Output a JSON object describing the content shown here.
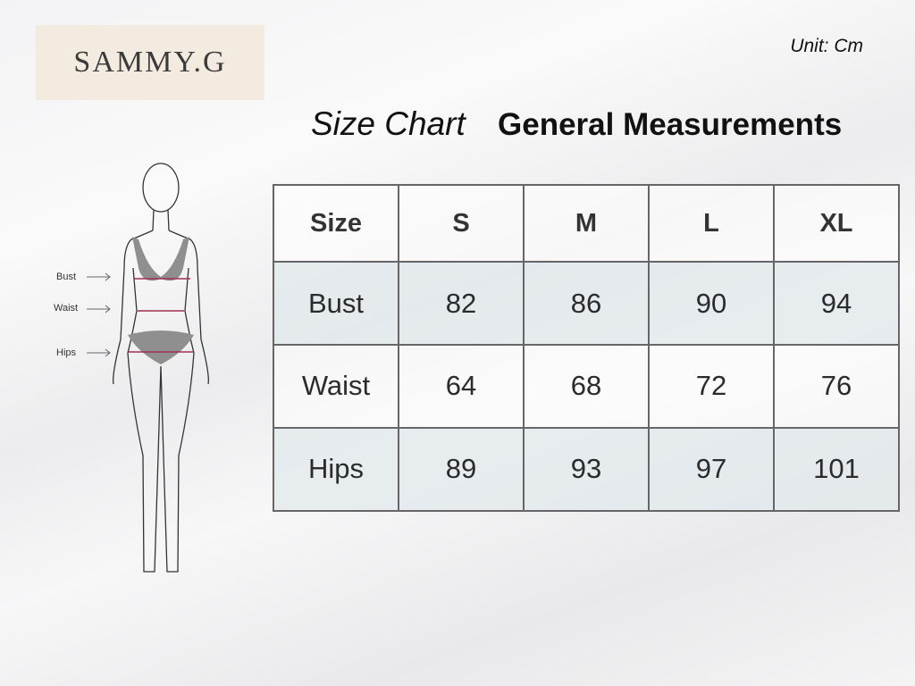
{
  "brand": {
    "logo_text": "SAMMY.G"
  },
  "unit_label": "Unit: Cm",
  "title": {
    "script": "Size Chart",
    "bold": "General Measurements"
  },
  "figure": {
    "labels": [
      "Bust",
      "Waist",
      "Hips"
    ]
  },
  "table": {
    "header": [
      "Size",
      "S",
      "M",
      "L",
      "XL"
    ],
    "rows": [
      [
        "Bust",
        "82",
        "86",
        "90",
        "94"
      ],
      [
        "Waist",
        "64",
        "68",
        "72",
        "76"
      ],
      [
        "Hips",
        "89",
        "93",
        "97",
        "101"
      ]
    ]
  },
  "colors": {
    "measure_line": "#a03050",
    "garment": "#8f8f8f",
    "logo_bg": "#f3ebdf"
  }
}
